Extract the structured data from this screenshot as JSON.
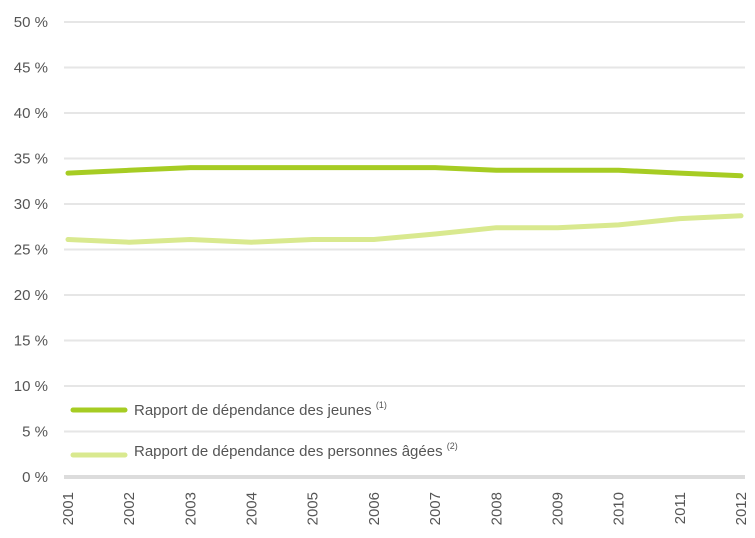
{
  "chart_data": {
    "type": "line",
    "categories": [
      "2001",
      "2002",
      "2003",
      "2004",
      "2005",
      "2006",
      "2007",
      "2008",
      "2009",
      "2010",
      "2011",
      "2012"
    ],
    "ylim": [
      0,
      50
    ],
    "ytick_values": [
      0,
      5,
      10,
      15,
      20,
      25,
      30,
      35,
      40,
      45,
      50
    ],
    "ytick_labels": [
      "0 %",
      "5 %",
      "10 %",
      "15 %",
      "20 %",
      "25 %",
      "30 %",
      "35 %",
      "40 %",
      "45 %",
      "50 %"
    ],
    "grid": true,
    "legend_position": "bottom-left",
    "series": [
      {
        "name": "Rapport de dépendance des jeunes",
        "note": "(1)",
        "color": "#a6cc23",
        "values": [
          33.4,
          33.7,
          34.0,
          34.0,
          34.0,
          34.0,
          34.0,
          33.7,
          33.7,
          33.7,
          33.4,
          33.1
        ]
      },
      {
        "name": "Rapport de dépendance des personnes âgées",
        "note": "(2)",
        "color": "#d9e98f",
        "values": [
          26.1,
          25.8,
          26.1,
          25.8,
          26.1,
          26.1,
          26.7,
          27.4,
          27.4,
          27.7,
          28.4,
          28.7
        ]
      }
    ]
  }
}
